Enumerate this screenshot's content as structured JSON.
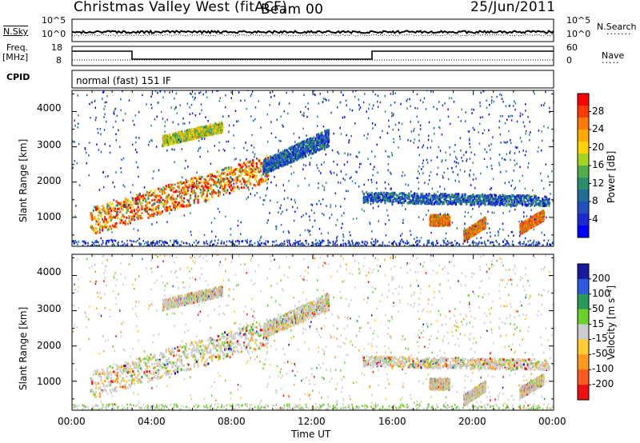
{
  "header": {
    "station": "Christmas Valley West (fitACF)",
    "beam": "Beam 00",
    "date": "25/Jun/2011"
  },
  "params": {
    "nsky_label": "N.Sky",
    "nsky_ticks": [
      "10^5",
      "10^0"
    ],
    "nsearch_label": "N.Search",
    "nsearch_ticks": [
      "10^5",
      "10^0"
    ],
    "freq_label": "Freq.",
    "freq_unit": "[MHz]",
    "freq_ticks": [
      "18",
      "8"
    ],
    "nave_label": "Nave",
    "nave_ticks": [
      "60",
      "0"
    ],
    "cpid_label": "CPID",
    "cpid_value": "normal (fast) 151 IF"
  },
  "chart_data": [
    {
      "type": "heatmap",
      "name": "power",
      "ylabel": "Slant Range [km]",
      "xlabel": "Time UT",
      "ylim": [
        180,
        4600
      ],
      "y_ticks": [
        "1000",
        "2000",
        "3000",
        "4000"
      ],
      "x_ticks": [
        "00:00",
        "04:00",
        "08:00",
        "12:00",
        "16:00",
        "20:00",
        "00:00"
      ],
      "colorbar": {
        "label": "Power [dB]",
        "ticks": [
          "28",
          "24",
          "20",
          "16",
          "12",
          "8",
          "4"
        ],
        "colors": [
          "#ff0000",
          "#ff3a00",
          "#ff7a00",
          "#ffaa00",
          "#ffd400",
          "#a6d41e",
          "#4fb04a",
          "#2a8f6a",
          "#1f6e9a",
          "#2050c0",
          "#1a2ad0",
          "#0000ff"
        ]
      }
    },
    {
      "type": "heatmap",
      "name": "velocity",
      "ylabel": "Slant Range [km]",
      "xlabel": "Time UT",
      "ylim": [
        180,
        4600
      ],
      "y_ticks": [
        "1000",
        "2000",
        "3000",
        "4000"
      ],
      "x_ticks": [
        "00:00",
        "04:00",
        "08:00",
        "12:00",
        "16:00",
        "20:00",
        "00:00"
      ],
      "colorbar": {
        "label": "Velocity [m s⁻¹]",
        "ticks": [
          "200",
          "100",
          "50",
          "15",
          "-15",
          "-50",
          "-100",
          "-200"
        ],
        "colors": [
          "#1a1aa0",
          "#2a5ae0",
          "#2a9a5a",
          "#6ad02a",
          "#cccccc",
          "#ffcc33",
          "#ff9a1a",
          "#ff5a1a",
          "#ee1010"
        ]
      }
    }
  ],
  "echo_bands": [
    {
      "t0": 0.9,
      "t1": 9.8,
      "r0": 480,
      "r1": 1250,
      "r2": 2000,
      "r3": 2750,
      "color": "hot"
    },
    {
      "t0": 4.5,
      "t1": 7.5,
      "r0": 3000,
      "r1": 3300,
      "r2": 3400,
      "r3": 3700,
      "color": "mid"
    },
    {
      "t0": 9.5,
      "t1": 12.8,
      "r0": 2200,
      "r1": 2600,
      "r2": 3000,
      "r3": 3500,
      "color": "cool"
    },
    {
      "t0": 14.5,
      "t1": 23.8,
      "r0": 1400,
      "r1": 1700,
      "r2": 1300,
      "r3": 1600,
      "color": "cool"
    },
    {
      "t0": 17.8,
      "t1": 18.8,
      "r0": 750,
      "r1": 1050,
      "r2": 750,
      "r3": 1050,
      "color": "hot"
    },
    {
      "t0": 19.5,
      "t1": 20.6,
      "r0": 300,
      "r1": 600,
      "r2": 700,
      "r3": 1000,
      "color": "hot"
    },
    {
      "t0": 22.3,
      "t1": 23.5,
      "r0": 500,
      "r1": 800,
      "r2": 900,
      "r3": 1200,
      "color": "hot"
    }
  ]
}
